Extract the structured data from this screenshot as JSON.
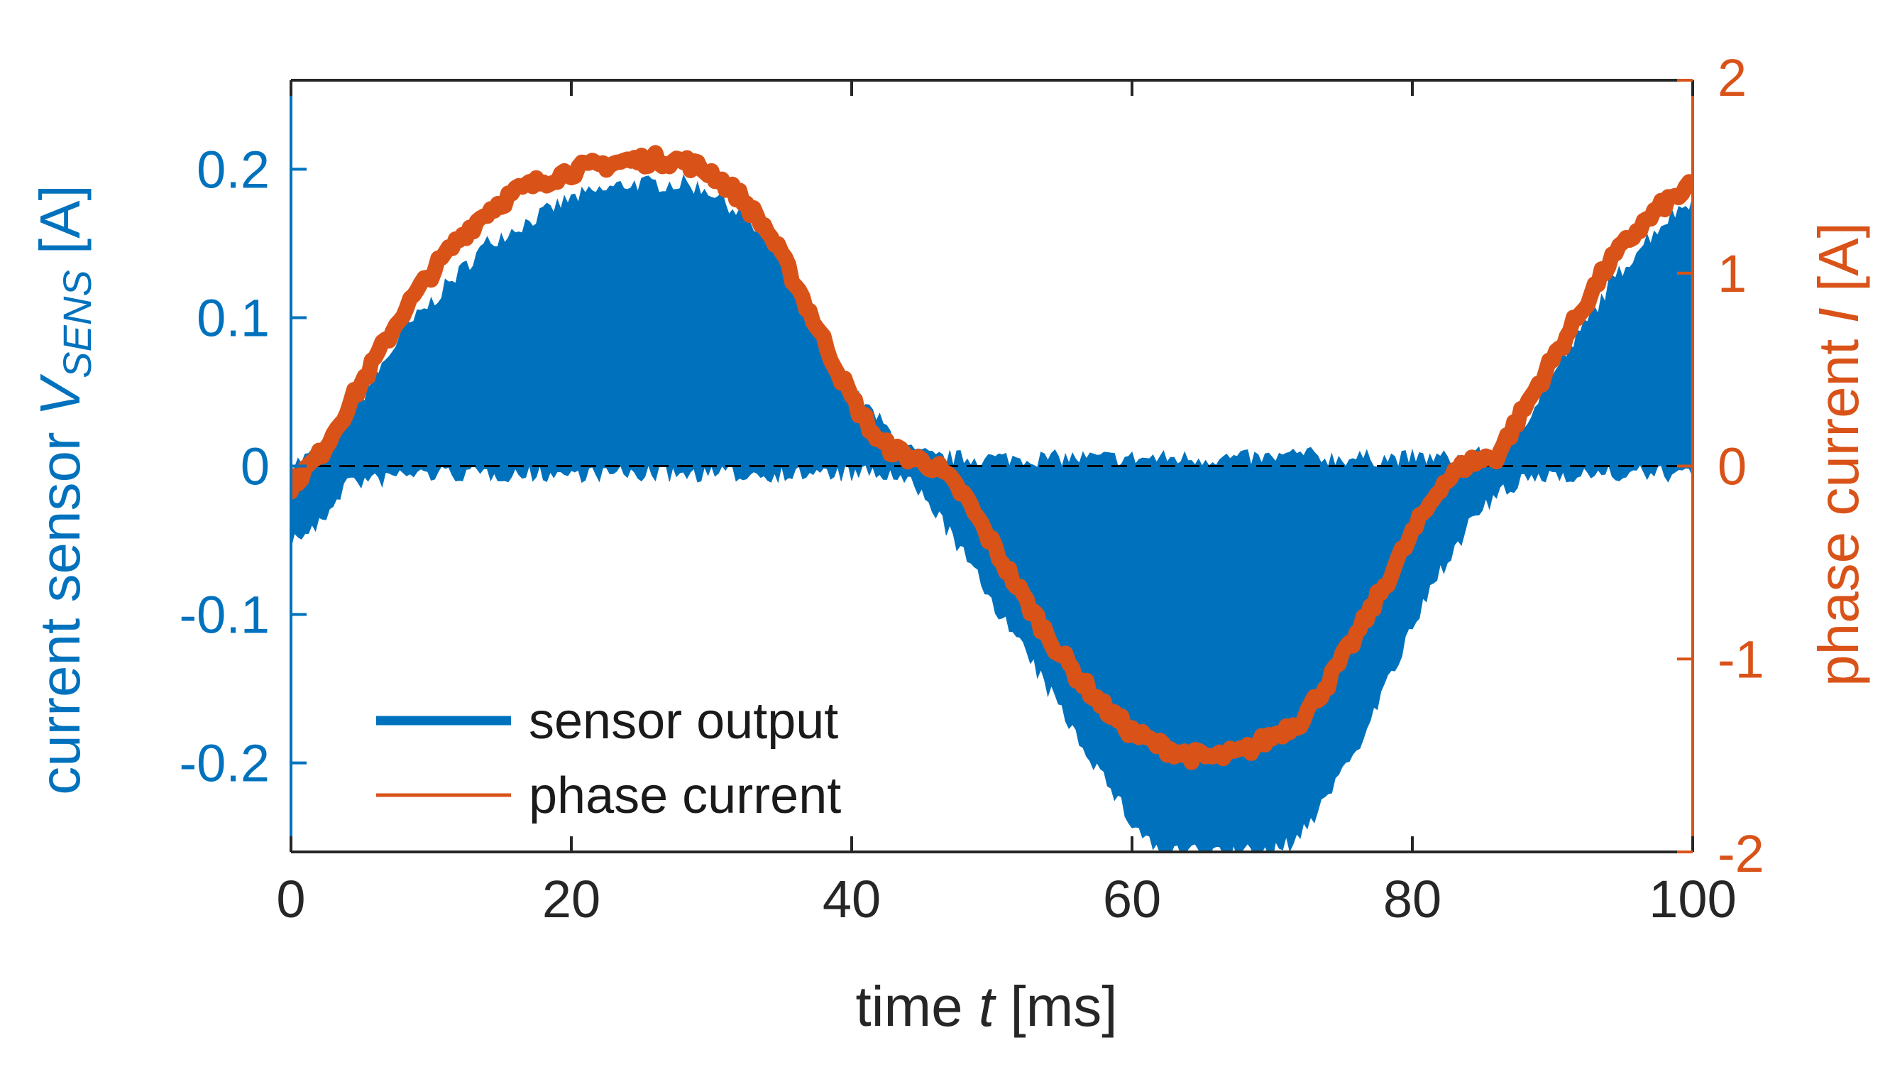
{
  "chart_data": {
    "type": "line",
    "title": "",
    "xlabel": {
      "prefix": "time ",
      "var": "t",
      "suffix": " [ms]"
    },
    "ylabel_left": {
      "prefix": "current sensor ",
      "var": "V",
      "sub": "SENS",
      "suffix": " [A]"
    },
    "ylabel_right": {
      "prefix": "phase current ",
      "var": "I",
      "suffix": " [A]"
    },
    "xlim": [
      0,
      100
    ],
    "ylim_left": [
      -0.26,
      0.26
    ],
    "ylim_right": [
      -2,
      2
    ],
    "x_ticks": [
      "0",
      "20",
      "40",
      "60",
      "80",
      "100"
    ],
    "x_tick_values": [
      0,
      20,
      40,
      60,
      80,
      100
    ],
    "y_left_ticks": [
      "0.2",
      "0.1",
      "0",
      "-0.1",
      "-0.2"
    ],
    "y_left_tick_values": [
      0.2,
      0.1,
      0,
      -0.1,
      -0.2
    ],
    "y_right_ticks": [
      "2",
      "1",
      "0",
      "-1",
      "-2"
    ],
    "y_right_tick_values": [
      2,
      1,
      0,
      -1,
      -2
    ],
    "zero_reference_line": {
      "axis": "left",
      "y": 0,
      "style": "dashed"
    },
    "legend": {
      "position": "bottom-left",
      "entries": [
        "sensor output",
        "phase current"
      ]
    },
    "series": [
      {
        "name": "sensor output",
        "axis": "left",
        "style": "filled-envelope",
        "color": "#0072BD",
        "x": [
          0,
          2,
          4,
          6,
          8,
          10,
          12,
          14,
          16,
          18,
          20,
          22,
          24,
          26,
          28,
          30,
          32,
          34,
          36,
          38,
          40,
          42,
          44,
          46,
          48,
          50,
          52,
          54,
          56,
          58,
          60,
          62,
          64,
          66,
          68,
          70,
          72,
          74,
          76,
          78,
          80,
          82,
          84,
          86,
          88,
          90,
          92,
          94,
          96,
          98,
          100
        ],
        "upper": [
          0.0,
          0.01,
          0.03,
          0.06,
          0.09,
          0.11,
          0.13,
          0.15,
          0.16,
          0.17,
          0.18,
          0.185,
          0.19,
          0.19,
          0.19,
          0.185,
          0.17,
          0.15,
          0.12,
          0.08,
          0.05,
          0.03,
          0.01,
          0.005,
          0.005,
          0.005,
          0.005,
          0.005,
          0.005,
          0.005,
          0.005,
          0.005,
          0.005,
          0.005,
          0.005,
          0.005,
          0.008,
          0.005,
          0.005,
          0.005,
          0.005,
          0.005,
          0.005,
          0.01,
          0.03,
          0.06,
          0.09,
          0.12,
          0.145,
          0.165,
          0.18
        ],
        "lower": [
          -0.05,
          -0.04,
          -0.01,
          -0.01,
          -0.005,
          -0.005,
          -0.005,
          -0.005,
          -0.005,
          -0.005,
          -0.005,
          -0.005,
          -0.005,
          -0.005,
          -0.005,
          -0.005,
          -0.005,
          -0.005,
          -0.005,
          -0.005,
          -0.005,
          -0.005,
          -0.01,
          -0.03,
          -0.06,
          -0.09,
          -0.12,
          -0.15,
          -0.18,
          -0.21,
          -0.24,
          -0.26,
          -0.26,
          -0.26,
          -0.26,
          -0.26,
          -0.25,
          -0.22,
          -0.19,
          -0.15,
          -0.11,
          -0.07,
          -0.04,
          -0.02,
          -0.01,
          -0.005,
          -0.005,
          -0.005,
          -0.005,
          -0.005,
          -0.005
        ]
      },
      {
        "name": "phase current",
        "axis": "right",
        "style": "line",
        "color": "#D95319",
        "x": [
          0,
          2,
          4,
          6,
          8,
          10,
          12,
          14,
          16,
          18,
          20,
          22,
          24,
          26,
          28,
          30,
          32,
          34,
          36,
          38,
          40,
          42,
          44,
          46,
          48,
          50,
          52,
          54,
          56,
          58,
          60,
          62,
          64,
          66,
          68,
          70,
          72,
          74,
          76,
          78,
          80,
          82,
          84,
          86,
          88,
          90,
          92,
          94,
          96,
          98,
          100
        ],
        "y": [
          -0.1,
          0.05,
          0.3,
          0.55,
          0.8,
          1.0,
          1.18,
          1.32,
          1.42,
          1.48,
          1.53,
          1.56,
          1.58,
          1.59,
          1.58,
          1.52,
          1.4,
          1.22,
          0.95,
          0.65,
          0.35,
          0.12,
          0.05,
          0.0,
          -0.15,
          -0.4,
          -0.65,
          -0.88,
          -1.08,
          -1.25,
          -1.38,
          -1.45,
          -1.5,
          -1.51,
          -1.48,
          -1.4,
          -1.32,
          -1.12,
          -0.88,
          -0.62,
          -0.35,
          -0.1,
          0.02,
          0.05,
          0.3,
          0.55,
          0.8,
          1.05,
          1.22,
          1.36,
          1.45
        ]
      }
    ]
  },
  "colors": {
    "left_axis": "#0072BD",
    "right_axis": "#D95319",
    "frame": "#262626",
    "text": "#262626"
  }
}
